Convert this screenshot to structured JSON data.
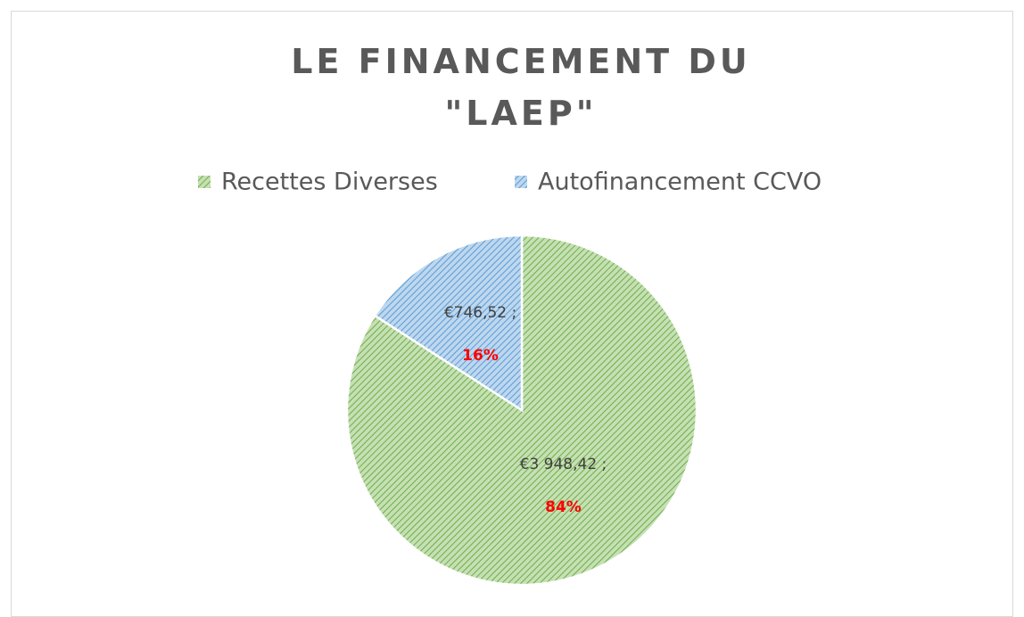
{
  "chart_data": {
    "type": "pie",
    "title": "LE FINANCEMENT DU \"LAEP\"",
    "categories": [
      "Recettes Diverses",
      "Autofinancement CCVO"
    ],
    "values": [
      3948.42,
      746.52
    ],
    "value_labels": [
      "€3 948,42 ;",
      "€746,52 ;"
    ],
    "percents": [
      84,
      16
    ],
    "percent_labels": [
      "84%",
      "16%"
    ],
    "colors": [
      "#70ad47",
      "#5b9bd5"
    ],
    "legend": "top"
  }
}
